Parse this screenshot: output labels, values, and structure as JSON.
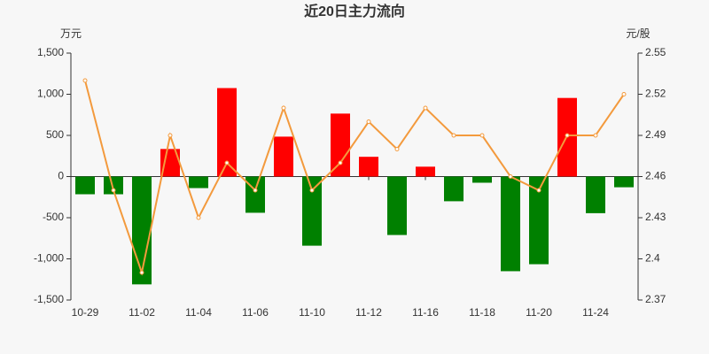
{
  "chart_data": {
    "type": "bar-line",
    "title": "近20日主力流向",
    "y_label": "万元",
    "y2_label": "元/股",
    "categories": [
      "10-29",
      null,
      "11-02",
      null,
      "11-04",
      null,
      "11-06",
      null,
      "11-10",
      null,
      "11-12",
      null,
      "11-16",
      null,
      "11-18",
      null,
      "11-20",
      null,
      "11-24",
      null
    ],
    "series": [
      {
        "type": "bar",
        "positive_color": "#ff0000",
        "negative_color": "#008000",
        "values": [
          -215,
          -215,
          -1310,
          335,
          -140,
          1075,
          -440,
          485,
          -840,
          765,
          240,
          -710,
          120,
          -300,
          -75,
          -1150,
          -1065,
          955,
          -445,
          -130
        ]
      },
      {
        "type": "line",
        "axis": "y2",
        "color": "#f39a3d",
        "values": [
          2.53,
          2.45,
          2.39,
          2.49,
          2.43,
          2.47,
          2.45,
          2.51,
          2.45,
          2.47,
          2.5,
          2.48,
          2.51,
          2.49,
          2.49,
          2.46,
          2.45,
          2.49,
          2.49,
          2.52
        ]
      }
    ],
    "ylim": [
      -1500,
      1500
    ],
    "yticks": [
      {
        "value": -1500,
        "label": "-1,500"
      },
      {
        "value": -1000,
        "label": "-1,000"
      },
      -500,
      0,
      500,
      {
        "value": 1000,
        "label": "1,000"
      },
      {
        "value": 1500,
        "label": "1,500"
      }
    ],
    "y2lim": [
      2.37,
      2.55
    ],
    "y2ticks": [
      2.37,
      2.4,
      2.43,
      2.46,
      2.49,
      2.52,
      2.55
    ]
  }
}
